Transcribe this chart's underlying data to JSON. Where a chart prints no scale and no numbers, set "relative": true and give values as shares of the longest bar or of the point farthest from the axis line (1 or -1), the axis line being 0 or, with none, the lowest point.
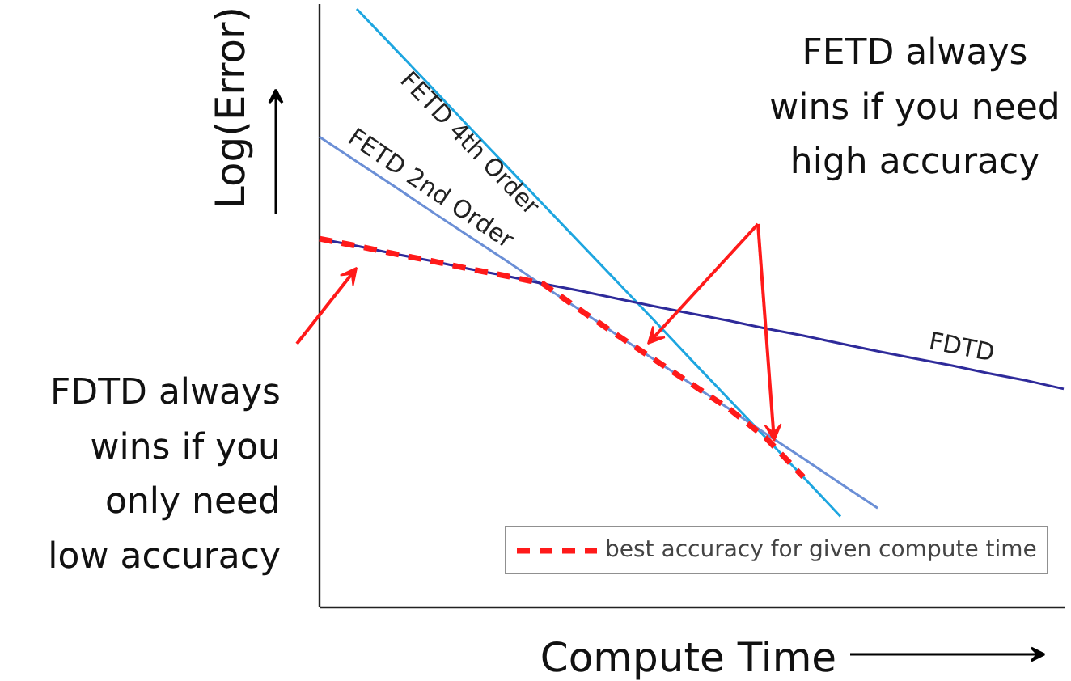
{
  "chart_data": {
    "type": "line",
    "relative": true,
    "xlabel": "Compute Time",
    "ylabel": "Log(Error)",
    "legend": "bottom right",
    "grid": false,
    "categories": [
      null,
      null,
      null,
      null,
      null,
      null,
      null,
      null,
      null,
      null,
      null,
      null,
      null,
      null,
      null,
      null,
      null,
      null,
      null,
      null,
      null
    ],
    "series": [
      {
        "name": "FETD 4th Order",
        "color": "#1ea6e0",
        "values": [
          null,
          1.0,
          0.935,
          0.87,
          0.804,
          0.739,
          0.674,
          0.609,
          0.544,
          0.479,
          0.413,
          0.348,
          0.283,
          0.218,
          0.152,
          null,
          null,
          null,
          null,
          null,
          null
        ]
      },
      {
        "name": "FETD 2nd Order",
        "color": "#6b8fd6",
        "values": [
          0.786,
          0.745,
          0.704,
          0.662,
          0.621,
          0.58,
          0.538,
          0.497,
          0.455,
          0.414,
          0.373,
          0.332,
          0.29,
          0.249,
          0.207,
          0.166,
          null,
          null,
          null,
          null,
          null
        ]
      },
      {
        "name": "FDTD",
        "color": "#2e2a9a",
        "values": [
          0.616,
          0.604,
          0.591,
          0.579,
          0.566,
          0.554,
          0.541,
          0.529,
          0.516,
          0.503,
          0.491,
          0.479,
          0.466,
          0.454,
          0.441,
          0.428,
          0.416,
          0.404,
          0.391,
          0.379,
          0.365
        ]
      },
      {
        "name": "best accuracy for given compute time",
        "color": "#ff1a1a",
        "line_style": "dashed",
        "values": [
          0.616,
          0.604,
          0.591,
          0.579,
          0.566,
          0.554,
          0.541,
          0.497,
          0.455,
          0.414,
          0.373,
          0.332,
          0.283,
          0.218,
          null,
          null,
          null,
          null,
          null,
          null,
          null
        ]
      }
    ],
    "annotations": [
      "FETD always\nwins if you need\nhigh accuracy",
      "FDTD always\nwins if you\nonly need\nlow accuracy"
    ]
  }
}
